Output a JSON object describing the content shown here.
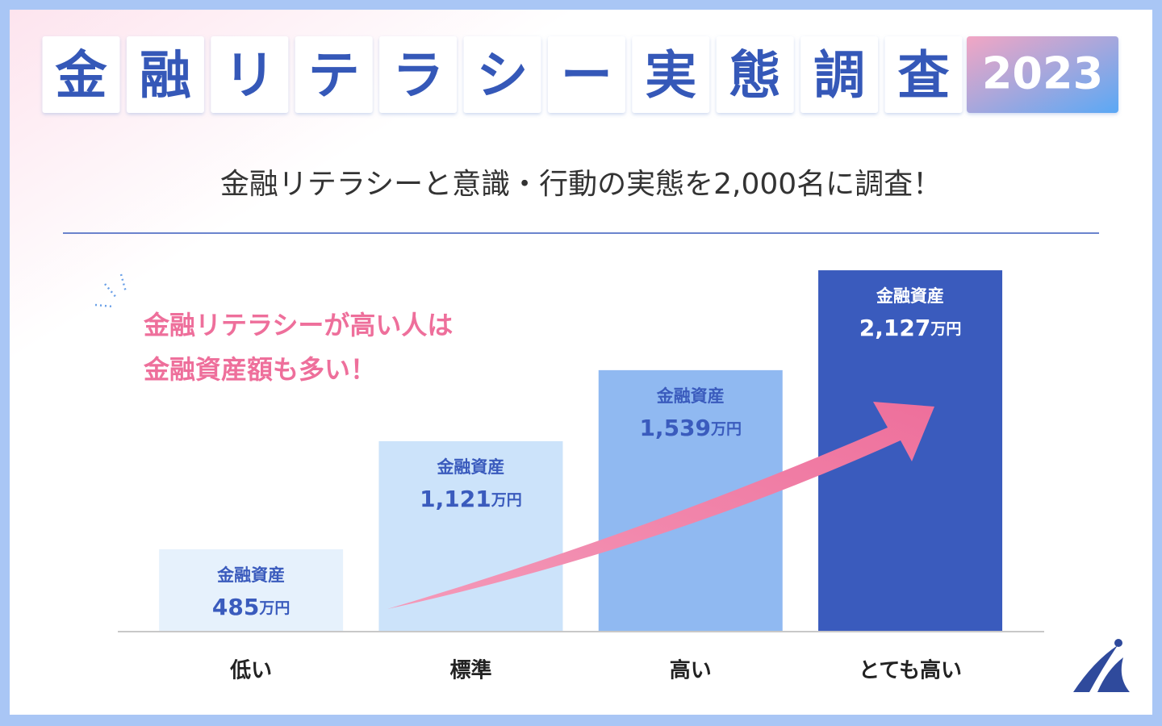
{
  "chart_data": {
    "type": "bar",
    "title": "金融リテラシー実態調査",
    "badge": "2023",
    "subtitle": "金融リテラシーと意識・行動の実態を2,000名に調査！",
    "annotation": [
      "金融リテラシーが高い人は",
      "金融資産額も多い！"
    ],
    "bar_label": "金融資産",
    "categories": [
      "低い",
      "標準",
      "高い",
      "とても高い"
    ],
    "values": [
      485,
      1121,
      1539,
      2127
    ],
    "value_labels": [
      "485万円",
      "1,121万円",
      "1,539万円",
      "2,127万円"
    ],
    "colors": [
      "#e6f1fc",
      "#cce3fa",
      "#90b9f1",
      "#3a5bbd"
    ]
  }
}
